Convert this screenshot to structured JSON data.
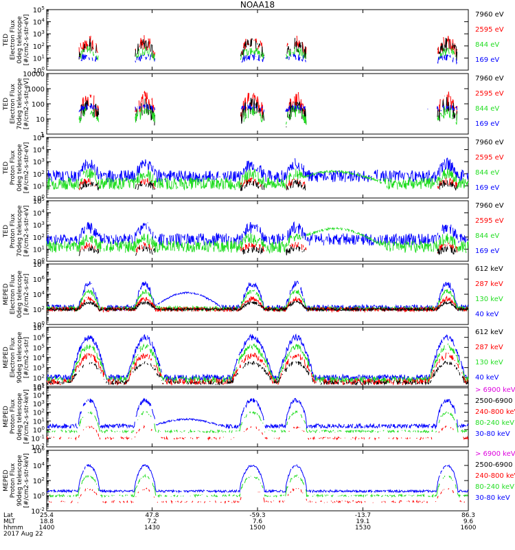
{
  "title": "NOAA18",
  "colors": {
    "black": "#000000",
    "red": "#ff0000",
    "green": "#22dd22",
    "blue": "#0000ff",
    "magenta": "#dd00dd"
  },
  "chart_data": [
    {
      "type": "line",
      "instrument": "TED",
      "ylabel_lines": [
        "TED",
        "Electron Flux",
        "0deg telescope",
        "[#/cm2-s-str-eV]"
      ],
      "log_range": [
        0,
        5
      ],
      "tick_exponents": [
        0,
        1,
        2,
        3,
        4,
        5
      ],
      "tick_style": "exp",
      "legend": [
        "7960 eV",
        "2595 eV",
        "844 eV",
        "169 eV"
      ],
      "legend_colors": [
        "black",
        "red",
        "green",
        "blue"
      ],
      "series": [
        {
          "color": "red",
          "profile": "spiky",
          "base": 1.4,
          "amp": 0.9,
          "jitter": 0.6,
          "gap": 0.4,
          "seed": 11
        },
        {
          "color": "black",
          "profile": "spiky",
          "base": 1.2,
          "amp": 0.9,
          "jitter": 0.6,
          "gap": 0.4,
          "seed": 12
        },
        {
          "color": "green",
          "profile": "spiky",
          "base": 1.0,
          "amp": 0.6,
          "jitter": 0.4,
          "gap": 0.65,
          "seed": 13
        },
        {
          "color": "blue",
          "profile": "spiky",
          "base": 0.8,
          "amp": 0.3,
          "jitter": 0.3,
          "gap": 0.95,
          "seed": 14
        }
      ]
    },
    {
      "type": "line",
      "instrument": "TED",
      "ylabel_lines": [
        "TED",
        "Electron Flux",
        "70deg telescope",
        "[#/cm2-s-str-eV]"
      ],
      "log_range": [
        0,
        4
      ],
      "tick_exponents": [
        0,
        1,
        2,
        3,
        4
      ],
      "tick_style": "plain",
      "tick_labels": [
        "1",
        "10",
        "100",
        "1000",
        "10000"
      ],
      "legend": [
        "7960 eV",
        "2595 eV",
        "844 eV",
        "169 eV"
      ],
      "legend_colors": [
        "black",
        "red",
        "green",
        "blue"
      ],
      "series": [
        {
          "color": "red",
          "profile": "spiky",
          "base": 1.2,
          "amp": 1.1,
          "jitter": 0.6,
          "gap": 0.4,
          "seed": 21
        },
        {
          "color": "black",
          "profile": "spiky",
          "base": 0.9,
          "amp": 1.0,
          "jitter": 0.6,
          "gap": 0.4,
          "seed": 22
        },
        {
          "color": "green",
          "profile": "spiky",
          "base": 0.9,
          "amp": 0.6,
          "jitter": 0.4,
          "gap": 0.7,
          "seed": 23
        },
        {
          "color": "blue",
          "profile": "spiky",
          "base": 1.6,
          "amp": 0.2,
          "jitter": 0.2,
          "gap": 0.97,
          "seed": 24
        }
      ]
    },
    {
      "type": "line",
      "instrument": "TED",
      "ylabel_lines": [
        "TED",
        "Proton Flux",
        "0deg telescope",
        "[#/cm2-s-str-eV]"
      ],
      "log_range": [
        0,
        5
      ],
      "tick_exponents": [
        0,
        1,
        2,
        3,
        4,
        5
      ],
      "tick_style": "exp",
      "legend": [
        "7960 eV",
        "2595 eV",
        "844 eV",
        "169 eV"
      ],
      "legend_colors": [
        "black",
        "red",
        "green",
        "blue"
      ],
      "series": [
        {
          "color": "blue",
          "profile": "noisy",
          "base": 1.8,
          "amp": 1.0,
          "jitter": 0.5,
          "gap": 0.1,
          "seed": 31
        },
        {
          "color": "green",
          "profile": "noisy",
          "base": 1.2,
          "amp": 0.8,
          "jitter": 0.5,
          "gap": 0.05,
          "seed": 32,
          "hump": 1.0
        },
        {
          "color": "red",
          "profile": "spiky",
          "base": 0.9,
          "amp": 0.5,
          "jitter": 0.3,
          "gap": 0.85,
          "seed": 33
        },
        {
          "color": "black",
          "profile": "spiky",
          "base": 0.8,
          "amp": 0.4,
          "jitter": 0.3,
          "gap": 0.9,
          "seed": 34
        }
      ]
    },
    {
      "type": "line",
      "instrument": "TED",
      "ylabel_lines": [
        "TED",
        "Proton Flux",
        "70deg telescope",
        "[#/cm2-s-str-eV]"
      ],
      "log_range": [
        0,
        5
      ],
      "tick_exponents": [
        0,
        1,
        2,
        3,
        4,
        5
      ],
      "tick_style": "exp",
      "legend": [
        "7960 eV",
        "2595 eV",
        "844 eV",
        "169 eV"
      ],
      "legend_colors": [
        "black",
        "red",
        "green",
        "blue"
      ],
      "series": [
        {
          "color": "blue",
          "profile": "noisy",
          "base": 1.8,
          "amp": 1.0,
          "jitter": 0.5,
          "gap": 0.15,
          "seed": 41
        },
        {
          "color": "green",
          "profile": "noisy",
          "base": 1.2,
          "amp": 0.7,
          "jitter": 0.5,
          "gap": 0.1,
          "seed": 42,
          "hump": 1.5
        },
        {
          "color": "red",
          "profile": "spiky",
          "base": 0.9,
          "amp": 0.4,
          "jitter": 0.3,
          "gap": 0.9,
          "seed": 43
        },
        {
          "color": "black",
          "profile": "spiky",
          "base": 0.7,
          "amp": 0.3,
          "jitter": 0.3,
          "gap": 0.92,
          "seed": 44
        }
      ]
    },
    {
      "type": "line",
      "instrument": "MEPED",
      "ylabel_lines": [
        "MEPED",
        "Electron Flux",
        "0deg telescope",
        "[#/cm2-s-str]"
      ],
      "log_range": [
        0,
        8
      ],
      "tick_exponents": [
        0,
        2,
        4,
        6,
        8
      ],
      "tick_style": "exp",
      "legend": [
        "612 keV",
        "287 keV",
        "130 keV",
        "40 keV"
      ],
      "legend_colors": [
        "black",
        "red",
        "green",
        "blue"
      ],
      "series": [
        {
          "color": "blue",
          "profile": "belt",
          "base": 2.2,
          "amp": 3.2,
          "jitter": 0.4,
          "gap": 0.05,
          "seed": 51,
          "hump": 2.0
        },
        {
          "color": "green",
          "profile": "belt",
          "base": 2.1,
          "amp": 2.3,
          "jitter": 0.3,
          "gap": 0.05,
          "seed": 52
        },
        {
          "color": "red",
          "profile": "belt",
          "base": 2.0,
          "amp": 1.4,
          "jitter": 0.3,
          "gap": 0.05,
          "seed": 53
        },
        {
          "color": "black",
          "profile": "belt",
          "base": 2.0,
          "amp": 0.9,
          "jitter": 0.2,
          "gap": 0.05,
          "seed": 54
        }
      ]
    },
    {
      "type": "line",
      "instrument": "MEPED",
      "ylabel_lines": [
        "MEPED",
        "Electron Flux",
        "90deg telescope",
        "[#/cm2-s-str]"
      ],
      "log_range": [
        1,
        7
      ],
      "tick_exponents": [
        1,
        2,
        3,
        4,
        5,
        6,
        7
      ],
      "tick_style": "exp",
      "legend": [
        "612 keV",
        "287 keV",
        "130 keV",
        "40 keV"
      ],
      "legend_colors": [
        "black",
        "red",
        "green",
        "blue"
      ],
      "series": [
        {
          "color": "blue",
          "profile": "belt",
          "base": 2.0,
          "amp": 4.0,
          "jitter": 0.3,
          "gap": 0.05,
          "seed": 61,
          "wide": true
        },
        {
          "color": "green",
          "profile": "belt",
          "base": 1.8,
          "amp": 3.3,
          "jitter": 0.3,
          "gap": 0.1,
          "seed": 62,
          "wide": true
        },
        {
          "color": "red",
          "profile": "belt",
          "base": 1.6,
          "amp": 2.6,
          "jitter": 0.3,
          "gap": 0.2,
          "seed": 63,
          "wide": true
        },
        {
          "color": "black",
          "profile": "belt",
          "base": 1.5,
          "amp": 2.0,
          "jitter": 0.2,
          "gap": 0.3,
          "seed": 64,
          "wide": true
        }
      ]
    },
    {
      "type": "line",
      "instrument": "MEPED",
      "ylabel_lines": [
        "MEPED",
        "Proton Flux",
        "0deg telescope",
        "[#/cm2-s-str-keV]"
      ],
      "log_range": [
        -2,
        5
      ],
      "tick_exponents": [
        -2,
        -1,
        0,
        1,
        2,
        3,
        4,
        5
      ],
      "tick_style": "exp",
      "legend": [
        "> 6900 keV",
        "2500-6900",
        "240-800 keV",
        "80-240 keV",
        "30-80 keV"
      ],
      "legend_colors": [
        "magenta",
        "black",
        "red",
        "green",
        "blue"
      ],
      "series": [
        {
          "color": "blue",
          "profile": "proton",
          "base": 0.4,
          "amp": 3.0,
          "jitter": 0.5,
          "gap": 0.05,
          "seed": 71,
          "hump": 0.8
        },
        {
          "color": "green",
          "profile": "proton",
          "base": -0.2,
          "amp": 2.2,
          "jitter": 0.3,
          "gap": 0.3,
          "seed": 72
        },
        {
          "color": "red",
          "profile": "proton",
          "base": -1.0,
          "amp": 1.3,
          "jitter": 0.3,
          "gap": 0.5,
          "seed": 73
        }
      ]
    },
    {
      "type": "line",
      "instrument": "MEPED",
      "ylabel_lines": [
        "MEPED",
        "Proton Flux",
        "90deg telescope",
        "[#/cm2-s-str-keV]"
      ],
      "log_range": [
        -2,
        6
      ],
      "tick_exponents": [
        -2,
        0,
        2,
        4,
        6
      ],
      "tick_style": "exp",
      "legend": [
        "> 6900 keV",
        "2500-6900",
        "240-800 keV",
        "80-240 keV",
        "30-80 keV"
      ],
      "legend_colors": [
        "magenta",
        "black",
        "red",
        "green",
        "blue"
      ],
      "series": [
        {
          "color": "blue",
          "profile": "proton",
          "base": 0.6,
          "amp": 3.4,
          "jitter": 0.3,
          "gap": 0.03,
          "seed": 81
        },
        {
          "color": "green",
          "profile": "proton",
          "base": 0.0,
          "amp": 2.6,
          "jitter": 0.3,
          "gap": 0.3,
          "seed": 82
        },
        {
          "color": "red",
          "profile": "proton",
          "base": -0.8,
          "amp": 1.7,
          "jitter": 0.3,
          "gap": 0.5,
          "seed": 83
        }
      ]
    }
  ],
  "x_axis": {
    "range_minutes": [
      0,
      120
    ],
    "row_labels": [
      "Lat",
      "MLT",
      "hhmm",
      "2017 Aug 22"
    ],
    "ticks": [
      {
        "minute": 0,
        "lat": "25.4",
        "mlt": "18.8",
        "hhmm": "1400"
      },
      {
        "minute": 30,
        "lat": "47.8",
        "mlt": "7.2",
        "hhmm": "1430"
      },
      {
        "minute": 60,
        "lat": "-59.3",
        "mlt": "7.6",
        "hhmm": "1500"
      },
      {
        "minute": 90,
        "lat": "-13.7",
        "mlt": "19.1",
        "hhmm": "1530"
      },
      {
        "minute": 120,
        "lat": "86.3",
        "mlt": "9.6",
        "hhmm": "1600"
      }
    ],
    "activity_windows": [
      [
        9,
        15
      ],
      [
        25,
        31
      ],
      [
        55,
        62
      ],
      [
        68,
        74
      ],
      [
        111,
        117
      ]
    ]
  }
}
